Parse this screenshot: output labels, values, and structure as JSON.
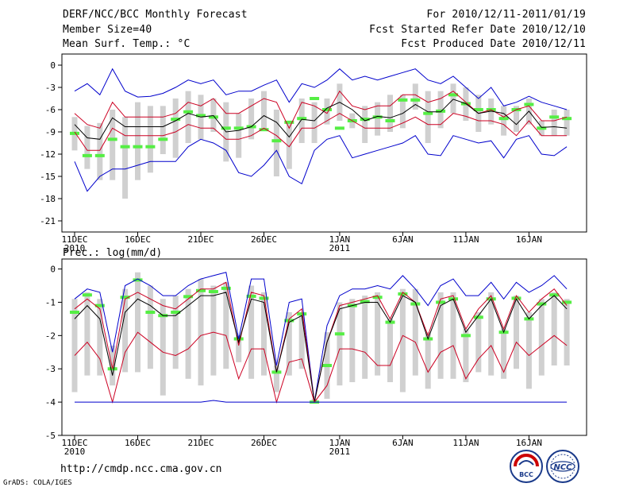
{
  "header": {
    "title": "DERF/NCC/BCC Monthly Forecast",
    "member_size": "Member Size=40",
    "variable_temp": "Mean Surf. Temp.: °C",
    "period": "For 2010/12/11-2011/01/19",
    "started": "Fcst Started Refer Date 2010/12/10",
    "produced": "Fcst Produced Date 2010/12/11"
  },
  "footer": {
    "url": "http://cmdp.ncc.cma.gov.cn",
    "credit": "GrADS: COLA/IGES"
  },
  "logos": {
    "bcc_text": "BCC",
    "ncc_text": "NCC"
  },
  "colors": {
    "max_min_line": "#0000cc",
    "spread_line": "#cc0022",
    "mean_line": "#000000",
    "observed_bar": "#55ee44",
    "box": "#d0d0d0"
  },
  "chart_data": [
    {
      "type": "line",
      "title": "Mean Surf. Temp.: °C",
      "ylabel": "°C",
      "ylim": [
        -22.5,
        1.5
      ],
      "yticks": [
        0,
        -3,
        -6,
        -9,
        -12,
        -15,
        -18,
        -21
      ],
      "x_tick_labels": [
        {
          "day": 1,
          "label": "11DEC",
          "sub": "2010"
        },
        {
          "day": 6,
          "label": "16DEC",
          "sub": ""
        },
        {
          "day": 11,
          "label": "21DEC",
          "sub": ""
        },
        {
          "day": 16,
          "label": "26DEC",
          "sub": ""
        },
        {
          "day": 22,
          "label": "1JAN",
          "sub": "2011"
        },
        {
          "day": 27,
          "label": "6JAN",
          "sub": ""
        },
        {
          "day": 32,
          "label": "11JAN",
          "sub": ""
        },
        {
          "day": 37,
          "label": "16JAN",
          "sub": ""
        }
      ],
      "days": [
        1,
        2,
        3,
        4,
        5,
        6,
        7,
        8,
        9,
        10,
        11,
        12,
        13,
        14,
        15,
        16,
        17,
        18,
        19,
        20,
        21,
        22,
        23,
        24,
        25,
        26,
        27,
        28,
        29,
        30,
        31,
        32,
        33,
        34,
        35,
        36,
        37,
        38,
        39,
        40
      ],
      "series": [
        {
          "name": "max",
          "color": "#0000cc",
          "values": [
            -3.5,
            -2.5,
            -4,
            -0.5,
            -3.5,
            -4.3,
            -4.2,
            -3.8,
            -3,
            -2,
            -2.5,
            -2,
            -4,
            -3.5,
            -3.5,
            -2.7,
            -2,
            -5,
            -2.5,
            -3,
            -2,
            -0.5,
            -2,
            -1.5,
            -2,
            -1.5,
            -1,
            -0.5,
            -2,
            -2.5,
            -1.5,
            -3,
            -4.5,
            -3,
            -5.5,
            -5,
            -4.2,
            -5,
            -5.5,
            -6
          ]
        },
        {
          "name": "upper",
          "color": "#cc0022",
          "values": [
            -6.5,
            -8,
            -8.5,
            -5,
            -7,
            -7,
            -7,
            -7,
            -6.5,
            -5,
            -5.5,
            -4.5,
            -6.5,
            -6.5,
            -5.5,
            -4.5,
            -5,
            -8.5,
            -5,
            -5.5,
            -6.5,
            -3.5,
            -5.5,
            -6,
            -5.5,
            -5.5,
            -4,
            -4,
            -5,
            -4.5,
            -3.5,
            -5,
            -6.5,
            -6,
            -7,
            -6,
            -5.5,
            -7.5,
            -7.5,
            -7
          ]
        },
        {
          "name": "mean",
          "color": "#000000",
          "values": [
            -8,
            -9.8,
            -10,
            -7.1,
            -8.3,
            -8.3,
            -8.3,
            -8.3,
            -7.5,
            -6.5,
            -7,
            -6.8,
            -9,
            -8.8,
            -8.3,
            -6.8,
            -7.7,
            -9.7,
            -7.3,
            -7.5,
            -5.8,
            -5,
            -6,
            -7.5,
            -6.9,
            -7.1,
            -6.5,
            -5.3,
            -6.3,
            -6.3,
            -4.6,
            -5.2,
            -6.5,
            -6.2,
            -6.5,
            -8,
            -6.2,
            -8.4,
            -8.3,
            -8.5
          ]
        },
        {
          "name": "lower",
          "color": "#cc0022",
          "values": [
            -9,
            -11.5,
            -11.5,
            -8.5,
            -9.5,
            -9.5,
            -9.5,
            -9.5,
            -9,
            -8,
            -8.5,
            -8.5,
            -10,
            -10,
            -9.5,
            -8.5,
            -9.5,
            -11,
            -8.5,
            -8.5,
            -7.5,
            -6.5,
            -7.5,
            -8.5,
            -8.5,
            -8.5,
            -7.8,
            -7,
            -8,
            -8,
            -6.5,
            -6.9,
            -7.5,
            -7.5,
            -8,
            -9.5,
            -7.5,
            -9.5,
            -9.5,
            -9.5
          ]
        },
        {
          "name": "min",
          "color": "#0000cc",
          "values": [
            -13,
            -17,
            -15,
            -14,
            -14,
            -13.5,
            -13,
            -13,
            -13,
            -11,
            -10,
            -10.5,
            -11.5,
            -14.5,
            -15,
            -13.5,
            -11.5,
            -15,
            -16,
            -11.5,
            -10,
            -9.5,
            -12.5,
            -12,
            -11.5,
            -11,
            -10.5,
            -9.5,
            -12,
            -12.2,
            -9.5,
            -10,
            -10.5,
            -10.2,
            -12.5,
            -10,
            -9.5,
            -12,
            -12.2,
            -11
          ]
        }
      ],
      "boxes": [
        [
          -11.5,
          -7
        ],
        [
          -14,
          -8.2
        ],
        [
          -15.5,
          -7.8
        ],
        [
          -15.5,
          -6
        ],
        [
          -18,
          -7
        ],
        [
          -15.5,
          -5
        ],
        [
          -14.5,
          -5.5
        ],
        [
          -12,
          -5.5
        ],
        [
          -12.5,
          -4.5
        ],
        [
          -10.5,
          -3.5
        ],
        [
          -10,
          -4
        ],
        [
          -9,
          -4.5
        ],
        [
          -13,
          -5
        ],
        [
          -12.5,
          -6.5
        ],
        [
          -10,
          -4.5
        ],
        [
          -8.5,
          -3.5
        ],
        [
          -15,
          -6
        ],
        [
          -14,
          -7.5
        ],
        [
          -10.5,
          -4.5
        ],
        [
          -10.5,
          -5
        ],
        [
          -8,
          -4.5
        ],
        [
          -7.5,
          -2.5
        ],
        [
          -8.5,
          -6.5
        ],
        [
          -10.5,
          -5.5
        ],
        [
          -9.5,
          -5
        ],
        [
          -9,
          -4
        ],
        [
          -8.5,
          -4
        ],
        [
          -6,
          -2.5
        ],
        [
          -10.5,
          -3.5
        ],
        [
          -8.5,
          -3.5
        ],
        [
          -6.5,
          -2.5
        ],
        [
          -7.5,
          -3
        ],
        [
          -9,
          -4
        ],
        [
          -8,
          -4.5
        ],
        [
          -9.5,
          -5.5
        ],
        [
          -9,
          -5.5
        ],
        [
          -8,
          -4.5
        ],
        [
          -9.5,
          -7.5
        ],
        [
          -9.5,
          -6
        ],
        [
          -9.5,
          -6
        ]
      ],
      "observed": [
        -9.2,
        -12.2,
        -12.2,
        -10,
        -11,
        -11,
        -11,
        -10,
        -7.3,
        -6.3,
        -6.8,
        -7,
        -8.5,
        -8.5,
        -8.3,
        -8.7,
        -10.2,
        -7.7,
        -7.2,
        -4.5,
        -6,
        -8.5,
        -7.5,
        -7.3,
        -7,
        -7.5,
        -4.7,
        -4.7,
        -6.5,
        -6.2,
        -4,
        -5.2,
        -6,
        -6,
        -7.2,
        -6,
        -5.3,
        -8.5,
        -7,
        -7.2
      ]
    },
    {
      "type": "line",
      "title": "Prec.: log(mm/d)",
      "ylabel": "log(mm/d)",
      "ylim": [
        -5,
        0.3
      ],
      "yticks": [
        0,
        -1,
        -2,
        -3,
        -4,
        -5
      ],
      "x_tick_labels": [
        {
          "day": 1,
          "label": "11DEC",
          "sub": "2010"
        },
        {
          "day": 6,
          "label": "16DEC",
          "sub": ""
        },
        {
          "day": 11,
          "label": "21DEC",
          "sub": ""
        },
        {
          "day": 16,
          "label": "26DEC",
          "sub": ""
        },
        {
          "day": 22,
          "label": "1JAN",
          "sub": "2011"
        },
        {
          "day": 27,
          "label": "6JAN",
          "sub": ""
        },
        {
          "day": 32,
          "label": "11JAN",
          "sub": ""
        },
        {
          "day": 37,
          "label": "16JAN",
          "sub": ""
        }
      ],
      "days": [
        1,
        2,
        3,
        4,
        5,
        6,
        7,
        8,
        9,
        10,
        11,
        12,
        13,
        14,
        15,
        16,
        17,
        18,
        19,
        20,
        21,
        22,
        23,
        24,
        25,
        26,
        27,
        28,
        29,
        30,
        31,
        32,
        33,
        34,
        35,
        36,
        37,
        38,
        39,
        40
      ],
      "series": [
        {
          "name": "max",
          "color": "#0000cc",
          "values": [
            -0.9,
            -0.6,
            -0.7,
            -2.5,
            -0.5,
            -0.3,
            -0.5,
            -0.8,
            -0.8,
            -0.5,
            -0.3,
            -0.2,
            -0.1,
            -2.1,
            -0.3,
            -0.3,
            -2.9,
            -1,
            -0.9,
            -4,
            -1.7,
            -0.8,
            -0.6,
            -0.6,
            -0.5,
            -0.6,
            -0.2,
            -0.6,
            -1.1,
            -0.5,
            -0.3,
            -0.8,
            -0.8,
            -0.4,
            -0.9,
            -0.4,
            -0.7,
            -0.5,
            -0.2,
            -0.6
          ]
        },
        {
          "name": "upper",
          "color": "#cc0022",
          "values": [
            -1.2,
            -0.9,
            -1.2,
            -3,
            -0.9,
            -0.7,
            -0.9,
            -1.1,
            -1.2,
            -0.9,
            -0.6,
            -0.6,
            -0.4,
            -2.3,
            -0.7,
            -0.8,
            -3.1,
            -1.5,
            -1.2,
            -4,
            -2.2,
            -1.1,
            -1,
            -0.9,
            -0.8,
            -1.5,
            -0.7,
            -1,
            -2,
            -0.9,
            -0.8,
            -1.8,
            -1.2,
            -0.8,
            -1.8,
            -0.8,
            -1.3,
            -0.9,
            -0.6,
            -1.1
          ]
        },
        {
          "name": "mean",
          "color": "#000000",
          "values": [
            -1.5,
            -1.1,
            -1.5,
            -3.2,
            -1.3,
            -0.9,
            -1.1,
            -1.4,
            -1.4,
            -1.1,
            -0.8,
            -0.8,
            -0.7,
            -2.2,
            -0.9,
            -1,
            -3.1,
            -1.6,
            -1.4,
            -4,
            -2.2,
            -1.2,
            -1.1,
            -1,
            -1,
            -1.6,
            -0.8,
            -1,
            -2.1,
            -1.1,
            -0.9,
            -1.9,
            -1.4,
            -0.9,
            -1.9,
            -0.9,
            -1.5,
            -1.1,
            -0.8,
            -1.2
          ]
        },
        {
          "name": "lower",
          "color": "#cc0022",
          "values": [
            -2.6,
            -2.2,
            -2.7,
            -4,
            -2.5,
            -1.9,
            -2.2,
            -2.5,
            -2.6,
            -2.4,
            -2,
            -1.9,
            -2,
            -3.3,
            -2.4,
            -2.4,
            -4,
            -2.8,
            -2.7,
            -4,
            -3.5,
            -2.4,
            -2.4,
            -2.5,
            -2.9,
            -2.9,
            -2,
            -2.2,
            -3.1,
            -2.5,
            -2.3,
            -3.3,
            -2.7,
            -2.3,
            -3.1,
            -2.2,
            -2.6,
            -2.3,
            -2,
            -2.3
          ]
        },
        {
          "name": "min",
          "color": "#0000cc",
          "values": [
            -4,
            -4,
            -4,
            -4,
            -4,
            -4,
            -4,
            -4,
            -4,
            -4,
            -4,
            -3.95,
            -4,
            -4,
            -4,
            -4,
            -4,
            -4,
            -4,
            -4,
            -4,
            -4,
            -4,
            -4,
            -4,
            -4,
            -4,
            -4,
            -4,
            -4,
            -4,
            -4,
            -4,
            -4,
            -4,
            -4,
            -4,
            -4,
            -4,
            -4
          ]
        }
      ],
      "boxes": [
        [
          -3.7,
          -0.9
        ],
        [
          -3.2,
          -0.7
        ],
        [
          -3.2,
          -0.9
        ],
        [
          -3.5,
          -2.3
        ],
        [
          -3.1,
          -0.6
        ],
        [
          -3.1,
          -0.1
        ],
        [
          -3,
          -0.5
        ],
        [
          -3.8,
          -0.9
        ],
        [
          -3,
          -0.8
        ],
        [
          -3.3,
          -0.6
        ],
        [
          -3.5,
          -0.3
        ],
        [
          -3.2,
          -0.5
        ],
        [
          -3,
          -0.4
        ],
        [
          -2.8,
          -2
        ],
        [
          -3.3,
          -0.5
        ],
        [
          -3.2,
          -0.7
        ],
        [
          -3.7,
          -2.9
        ],
        [
          -3.2,
          -1.3
        ],
        [
          -3,
          -1.3
        ],
        [
          -4,
          -3.9
        ],
        [
          -3.9,
          -1.9
        ],
        [
          -3.5,
          -1
        ],
        [
          -3.4,
          -0.9
        ],
        [
          -3.3,
          -0.8
        ],
        [
          -3.2,
          -0.7
        ],
        [
          -3.4,
          -1.5
        ],
        [
          -3.7,
          -0.6
        ],
        [
          -3.2,
          -0.6
        ],
        [
          -3.6,
          -1.9
        ],
        [
          -3.3,
          -0.7
        ],
        [
          -3.3,
          -0.7
        ],
        [
          -3.4,
          -1.8
        ],
        [
          -3.1,
          -1.3
        ],
        [
          -3.2,
          -0.7
        ],
        [
          -3.3,
          -1.8
        ],
        [
          -3,
          -0.8
        ],
        [
          -3.6,
          -1.3
        ],
        [
          -3.2,
          -0.9
        ],
        [
          -2.9,
          -0.7
        ],
        [
          -2.9,
          -0.9
        ]
      ],
      "observed": [
        -1.3,
        -0.78,
        -1.1,
        -3,
        -0.85,
        -0.33,
        -1.3,
        -1.4,
        -1.3,
        -0.83,
        -0.65,
        -0.68,
        -0.58,
        -2.1,
        -0.82,
        -0.88,
        -3.1,
        -1.55,
        -1.35,
        -4,
        -2.9,
        -1.95,
        -1.1,
        -0.98,
        -0.85,
        -1.6,
        -0.75,
        -1.05,
        -2.1,
        -1,
        -0.9,
        -2,
        -1.45,
        -0.9,
        -1.9,
        -0.88,
        -1.5,
        -1.05,
        -0.78,
        -1
      ]
    }
  ]
}
